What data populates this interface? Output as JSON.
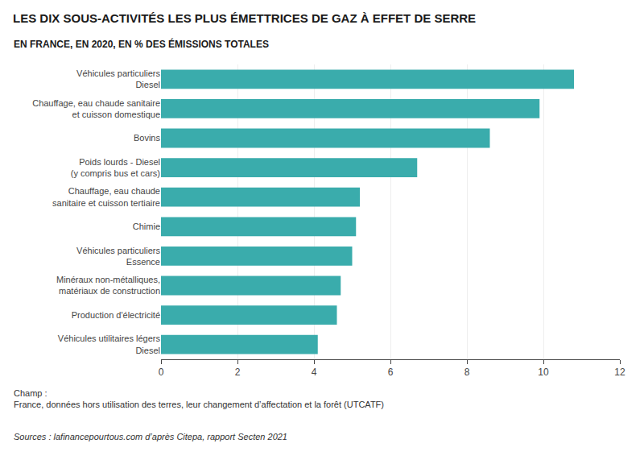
{
  "chart_data": {
    "type": "bar",
    "orientation": "horizontal",
    "title": "LES DIX SOUS-ACTIVITÉS LES PLUS ÉMETTRICES DE GAZ À EFFET DE SERRE",
    "subtitle": "EN FRANCE, EN 2020, EN % DES ÉMISSIONS TOTALES",
    "categories": [
      "Véhicules utilitaires légers\nDiesel",
      "Production d'électricité",
      "Minéraux non-métalliques,\nmatériaux de construction",
      "Véhicules particuliers\nEssence",
      "Chimie",
      "Chauffage, eau chaude\nsanitaire et cuisson tertiaire",
      "Poids lourds - Diesel\n(y compris bus et cars)",
      "Bovins",
      "Chauffage, eau chaude sanitaire\net cuisson domestique",
      "Véhicules particuliers\nDiesel"
    ],
    "values": [
      4.1,
      4.6,
      4.7,
      5.0,
      5.1,
      5.2,
      6.7,
      8.6,
      9.9,
      10.8
    ],
    "color": "#3aacac",
    "xlim": [
      0,
      12
    ],
    "xticks": [
      0,
      2,
      4,
      6,
      8,
      10,
      12
    ],
    "grid": true,
    "annotations": [
      "Champ :\nFrance, données hors utilisation des terres, leur changement d’affectation et la forêt (UTCATF)",
      "Sources : lafinancepourtous.com d’après Citepa, rapport Secten 2021"
    ]
  }
}
